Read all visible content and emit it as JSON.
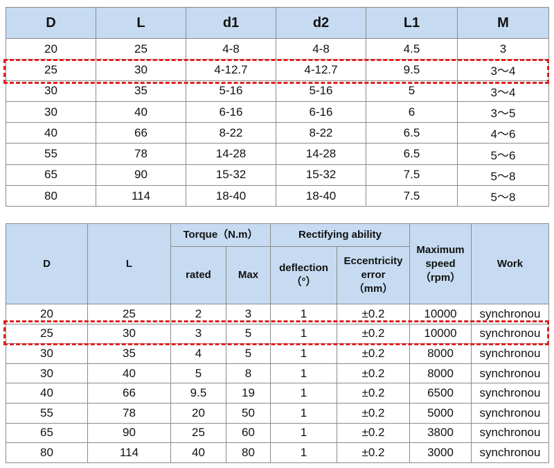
{
  "table1": {
    "header": [
      "D",
      "L",
      "d1",
      "d2",
      "L1",
      "M"
    ],
    "rows": [
      [
        "20",
        "25",
        "4-8",
        "4-8",
        "4.5",
        "3"
      ],
      [
        "25",
        "30",
        "4-12.7",
        "4-12.7",
        "9.5",
        "3～4"
      ],
      [
        "30",
        "35",
        "5-16",
        "5-16",
        "5",
        "3～4"
      ],
      [
        "30",
        "40",
        "6-16",
        "6-16",
        "6",
        "3～5"
      ],
      [
        "40",
        "66",
        "8-22",
        "8-22",
        "6.5",
        "4～6"
      ],
      [
        "55",
        "78",
        "14-28",
        "14-28",
        "6.5",
        "5～6"
      ],
      [
        "65",
        "90",
        "15-32",
        "15-32",
        "7.5",
        "5～8"
      ],
      [
        "80",
        "114",
        "18-40",
        "18-40",
        "7.5",
        "5～8"
      ]
    ]
  },
  "table2": {
    "header_top": [
      "D",
      "L",
      "Torque（N.m）",
      "Rectifying ability",
      "Maximum\nspeed\n（rpm）",
      "Work"
    ],
    "header_sub": [
      "rated",
      "Max",
      "deflection\n（°）",
      "Eccentricity\nerror\n（mm）"
    ],
    "rows": [
      [
        "20",
        "25",
        "2",
        "3",
        "1",
        "±0.2",
        "10000",
        "synchronou"
      ],
      [
        "25",
        "30",
        "3",
        "5",
        "1",
        "±0.2",
        "10000",
        "synchronou"
      ],
      [
        "30",
        "35",
        "4",
        "5",
        "1",
        "±0.2",
        "8000",
        "synchronou"
      ],
      [
        "30",
        "40",
        "5",
        "8",
        "1",
        "±0.2",
        "8000",
        "synchronou"
      ],
      [
        "40",
        "66",
        "9.5",
        "19",
        "1",
        "±0.2",
        "6500",
        "synchronou"
      ],
      [
        "55",
        "78",
        "20",
        "50",
        "1",
        "±0.2",
        "5000",
        "synchronou"
      ],
      [
        "65",
        "90",
        "25",
        "60",
        "1",
        "±0.2",
        "3800",
        "synchronou"
      ],
      [
        "80",
        "114",
        "40",
        "80",
        "1",
        "±0.2",
        "3000",
        "synchronou"
      ]
    ]
  }
}
